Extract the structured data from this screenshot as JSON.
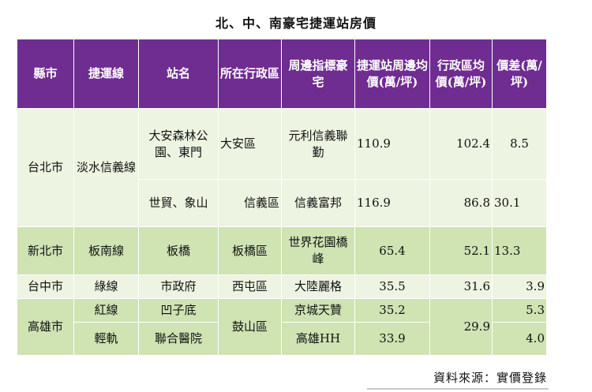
{
  "title": "北、中、南豪宅捷運站房價",
  "headers": [
    "縣市",
    "捷運線",
    "站名",
    "所在行政區",
    "周邊指標豪宅",
    "捷運站周邊均價(萬/坪)",
    "行政區均價(萬/坪)",
    "價差(萬/坪)"
  ],
  "rows": {
    "taipei": {
      "county": "台北市",
      "line": "淡水信義線",
      "r1": {
        "station": "大安森林公園、東門",
        "district": "大安區",
        "building": "元利信義聯勤",
        "station_price": "110.9",
        "district_price": "102.4",
        "diff": "8.5"
      },
      "r2": {
        "station": "世貿、象山",
        "district": "信義區",
        "building": "信義富邦",
        "station_price": "116.9",
        "district_price": "86.8",
        "diff": "30.1"
      }
    },
    "new_taipei": {
      "county": "新北市",
      "line": "板南線",
      "station": "板橋",
      "district": "板橋區",
      "building": "世界花園橋峰",
      "station_price": "65.4",
      "district_price": "52.1",
      "diff": "13.3"
    },
    "taichung": {
      "county": "台中市",
      "line": "綠線",
      "station": "市政府",
      "district": "西屯區",
      "building": "大陸麗格",
      "station_price": "35.5",
      "district_price": "31.6",
      "diff": "3.9"
    },
    "kaohsiung": {
      "county": "高雄市",
      "district": "鼓山區",
      "district_price": "29.9",
      "r1": {
        "line": "紅線",
        "station": "凹子底",
        "building": "京城天贊",
        "station_price": "35.2",
        "diff": "5.3"
      },
      "r2": {
        "line": "輕軌",
        "station": "聯合醫院",
        "building": "高雄HH",
        "station_price": "33.9",
        "diff": "4.0"
      }
    }
  },
  "source": "資料來源：實價登錄"
}
